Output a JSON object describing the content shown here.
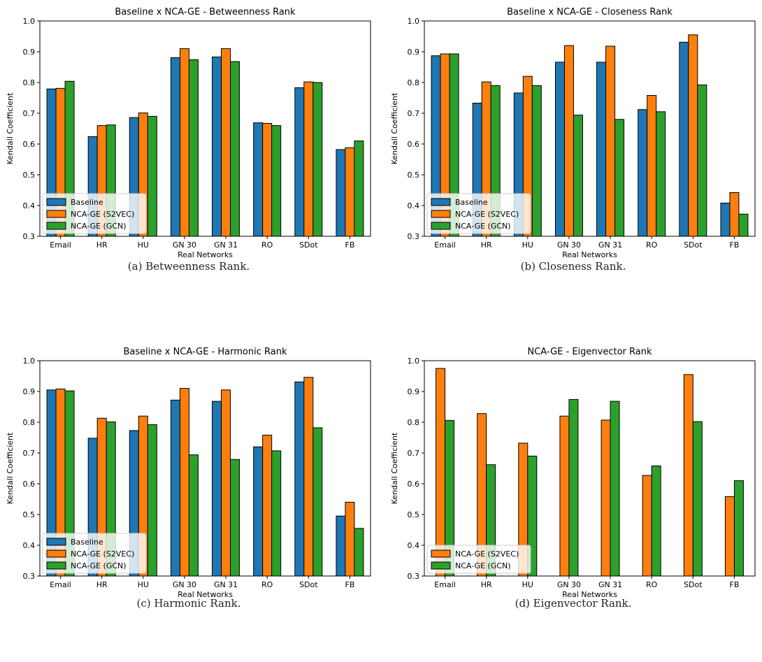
{
  "colors": {
    "baseline": "#1f77b4",
    "s2vec": "#ff7f0e",
    "gcn": "#2ca02c"
  },
  "chart_data": [
    {
      "type": "bar",
      "title": "Baseline x NCA-GE - Betweenness Rank",
      "xlabel": "Real Networks",
      "ylabel": "Kendall Coefficient",
      "ylim": [
        0.3,
        1.0
      ],
      "yticks": [
        "0.3",
        "0.4",
        "0.5",
        "0.6",
        "0.7",
        "0.8",
        "0.9",
        "1.0"
      ],
      "legend": "bottom-left",
      "grid": false,
      "categories": [
        "Email",
        "HR",
        "HU",
        "GN 30",
        "GN 31",
        "RO",
        "SDot",
        "FB"
      ],
      "series": [
        {
          "name": "Baseline",
          "color": "#1f77b4",
          "values": [
            0.779,
            0.624,
            0.686,
            0.881,
            0.883,
            0.669,
            0.783,
            0.582
          ]
        },
        {
          "name": "NCA-GE (S2VEC)",
          "color": "#ff7f0e",
          "values": [
            0.781,
            0.66,
            0.701,
            0.91,
            0.91,
            0.667,
            0.802,
            0.588
          ]
        },
        {
          "name": "NCA-GE (GCN)",
          "color": "#2ca02c",
          "values": [
            0.804,
            0.662,
            0.69,
            0.874,
            0.868,
            0.66,
            0.8,
            0.61
          ]
        }
      ],
      "caption": "(a) Betweenness Rank."
    },
    {
      "type": "bar",
      "title": "Baseline x NCA-GE - Closeness Rank",
      "xlabel": "Real Networks",
      "ylabel": "Kendall Coefficient",
      "ylim": [
        0.3,
        1.0
      ],
      "yticks": [
        "0.3",
        "0.4",
        "0.5",
        "0.6",
        "0.7",
        "0.8",
        "0.9",
        "1.0"
      ],
      "legend": "bottom-left",
      "grid": false,
      "categories": [
        "Email",
        "HR",
        "HU",
        "GN 30",
        "GN 31",
        "RO",
        "SDot",
        "FB"
      ],
      "series": [
        {
          "name": "Baseline",
          "color": "#1f77b4",
          "values": [
            0.887,
            0.733,
            0.766,
            0.866,
            0.866,
            0.712,
            0.931,
            0.408
          ]
        },
        {
          "name": "NCA-GE (S2VEC)",
          "color": "#ff7f0e",
          "values": [
            0.893,
            0.802,
            0.82,
            0.92,
            0.918,
            0.758,
            0.955,
            0.442
          ]
        },
        {
          "name": "NCA-GE (GCN)",
          "color": "#2ca02c",
          "values": [
            0.893,
            0.79,
            0.79,
            0.694,
            0.68,
            0.705,
            0.792,
            0.372
          ]
        }
      ],
      "caption": "(b) Closeness Rank."
    },
    {
      "type": "bar",
      "title": "Baseline x NCA-GE - Harmonic Rank",
      "xlabel": "Real Networks",
      "ylabel": "Kendall Coefficient",
      "ylim": [
        0.3,
        1.0
      ],
      "yticks": [
        "0.3",
        "0.4",
        "0.5",
        "0.6",
        "0.7",
        "0.8",
        "0.9",
        "1.0"
      ],
      "legend": "bottom-left",
      "grid": false,
      "categories": [
        "Email",
        "HR",
        "HU",
        "GN 30",
        "GN 31",
        "RO",
        "SDot",
        "FB"
      ],
      "series": [
        {
          "name": "Baseline",
          "color": "#1f77b4",
          "values": [
            0.905,
            0.748,
            0.773,
            0.872,
            0.868,
            0.72,
            0.931,
            0.495
          ]
        },
        {
          "name": "NCA-GE (S2VEC)",
          "color": "#ff7f0e",
          "values": [
            0.908,
            0.813,
            0.82,
            0.91,
            0.905,
            0.758,
            0.946,
            0.54
          ]
        },
        {
          "name": "NCA-GE (GCN)",
          "color": "#2ca02c",
          "values": [
            0.902,
            0.801,
            0.792,
            0.694,
            0.679,
            0.707,
            0.782,
            0.455
          ]
        }
      ],
      "caption": "(c) Harmonic Rank."
    },
    {
      "type": "bar",
      "title": "NCA-GE - Eigenvector Rank",
      "xlabel": "Real Networks",
      "ylabel": "Kendall Coefficient",
      "ylim": [
        0.3,
        1.0
      ],
      "yticks": [
        "0.3",
        "0.4",
        "0.5",
        "0.6",
        "0.7",
        "0.8",
        "0.9",
        "1.0"
      ],
      "legend": "bottom-left",
      "grid": false,
      "categories": [
        "Email",
        "HR",
        "HU",
        "GN 30",
        "GN 31",
        "RO",
        "SDot",
        "FB"
      ],
      "series": [
        {
          "name": "NCA-GE (S2VEC)",
          "color": "#ff7f0e",
          "values": [
            0.975,
            0.828,
            0.732,
            0.82,
            0.807,
            0.627,
            0.955,
            0.558
          ]
        },
        {
          "name": "NCA-GE (GCN)",
          "color": "#2ca02c",
          "values": [
            0.806,
            0.662,
            0.69,
            0.874,
            0.868,
            0.658,
            0.802,
            0.61
          ]
        }
      ],
      "caption": "(d) Eigenvector Rank."
    }
  ]
}
